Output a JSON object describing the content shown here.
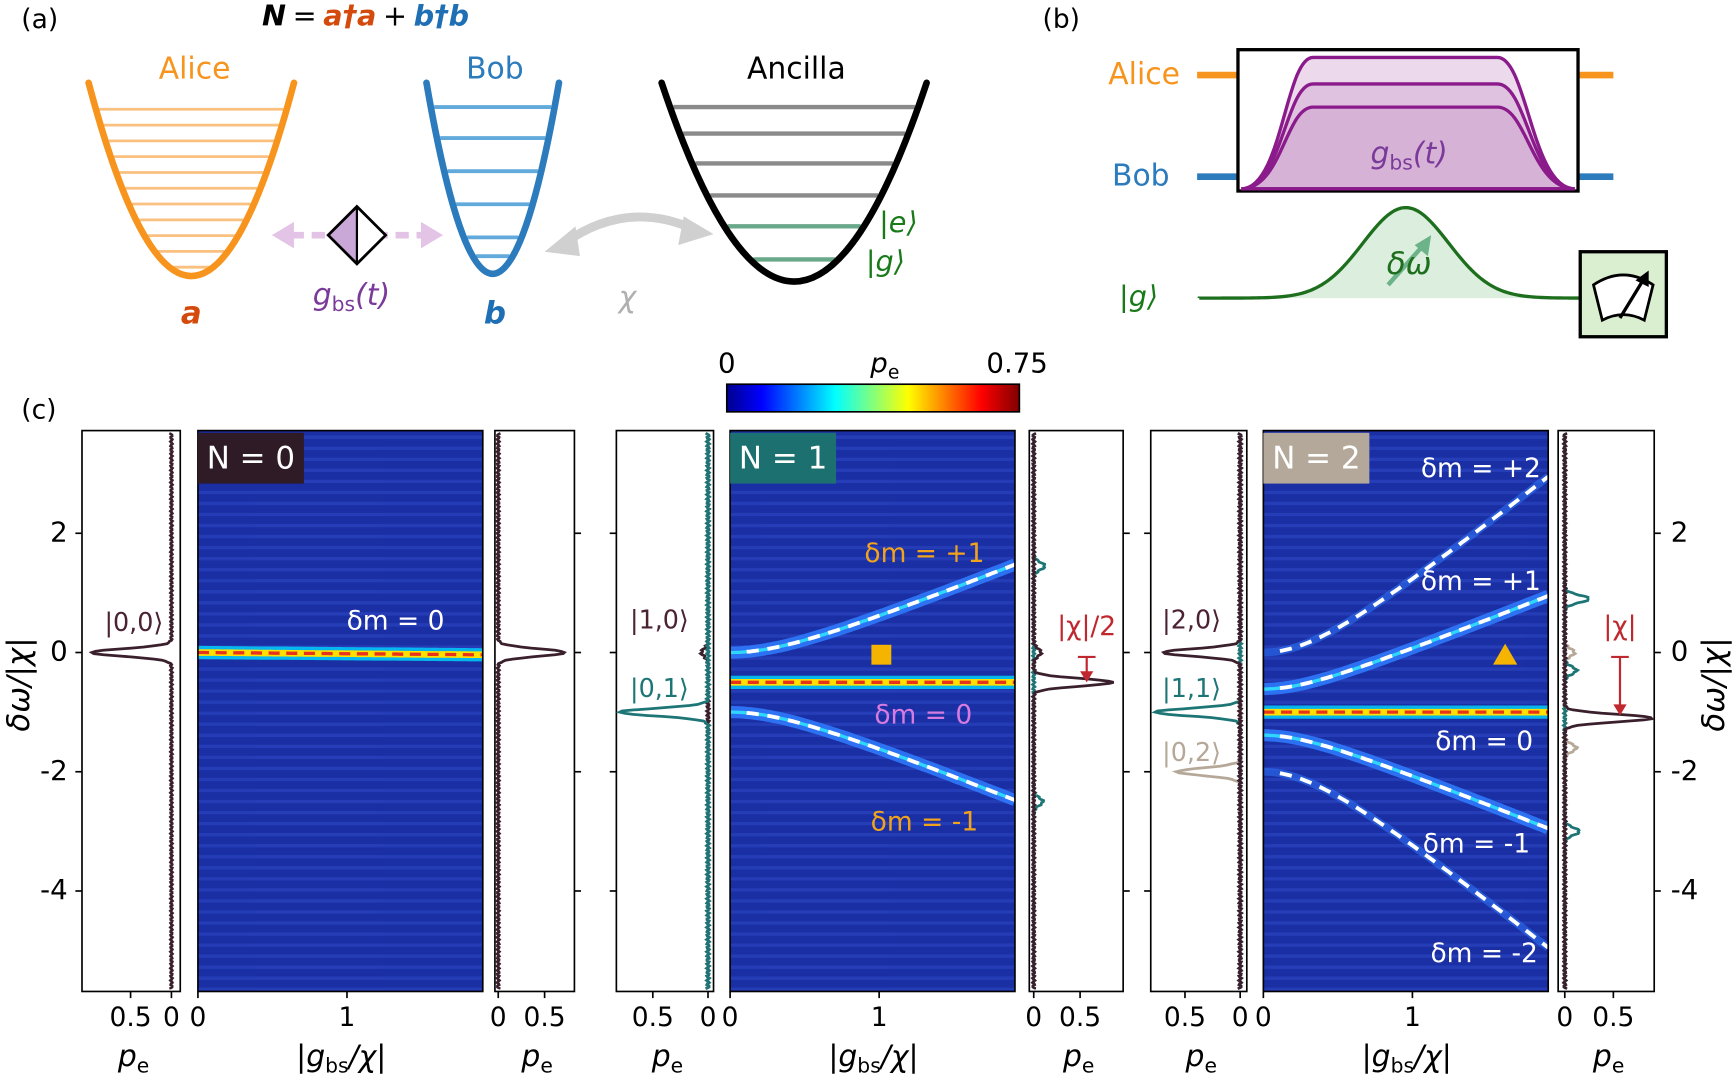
{
  "panel_labels": [
    "(a)",
    "(b)",
    "(c)"
  ],
  "equation": [
    "N",
    "=",
    "a†a",
    "+",
    "b†b"
  ],
  "panel_a": {
    "alice": "Alice",
    "bob": "Bob",
    "ancilla": "Ancilla",
    "mode_a": "a",
    "mode_b": "b",
    "coupling": [
      "g",
      "bs",
      "(t)"
    ],
    "chi": "χ",
    "ket_e": "|e⟩",
    "ket_g": "|g⟩"
  },
  "panel_b": {
    "alice": "Alice",
    "bob": "Bob",
    "coupling": [
      "g",
      "bs",
      "(t)"
    ],
    "ket_g": "|g⟩",
    "detuning": "δω"
  },
  "colorbar": {
    "min": 0,
    "label": [
      "p",
      "e"
    ],
    "max": 0.75
  },
  "panel_c": {
    "y_label": "δω/|χ|",
    "y_ticks": [
      2,
      0,
      -2,
      -4
    ],
    "groups": [
      {
        "title": "N = 0",
        "title_color": "#2e1b25",
        "x_label": [
          "|g",
          "bs",
          "/χ|"
        ],
        "x_ticks": [
          0,
          1
        ],
        "side_label": [
          "p",
          "e"
        ],
        "left_ticks": [
          0.5,
          0
        ],
        "right_ticks": [
          0,
          0.5
        ],
        "states": [
          {
            "label": "|0,0⟩",
            "color": "#4a2233"
          }
        ],
        "annotations": [
          {
            "text": "δm = 0",
            "color": "#ffffff"
          }
        ]
      },
      {
        "title": "N = 1",
        "title_color": "#1d7070",
        "x_label": [
          "|g",
          "bs",
          "/χ|"
        ],
        "x_ticks": [
          0,
          1
        ],
        "side_label": [
          "p",
          "e"
        ],
        "left_ticks": [
          0.5,
          0
        ],
        "right_ticks": [
          0,
          0.5
        ],
        "states": [
          {
            "label": "|1,0⟩",
            "color": "#4a2233"
          },
          {
            "label": "|0,1⟩",
            "color": "#1d7575"
          }
        ],
        "annotations": [
          {
            "text": "δm = +1",
            "color": "#f2a31c"
          },
          {
            "text": "δm = 0",
            "color": "#d77be0"
          },
          {
            "text": "δm = -1",
            "color": "#f2a31c"
          }
        ],
        "shift_label": {
          "text": "|χ|/2",
          "color": "#c0282f"
        }
      },
      {
        "title": "N = 2",
        "title_color": "#b3a899",
        "x_label": [
          "|g",
          "bs",
          "/χ|"
        ],
        "x_ticks": [
          0,
          1
        ],
        "side_label": [
          "p",
          "e"
        ],
        "left_ticks": [
          0.5,
          0
        ],
        "right_ticks": [
          0,
          0.5
        ],
        "states": [
          {
            "label": "|2,0⟩",
            "color": "#4a2233"
          },
          {
            "label": "|1,1⟩",
            "color": "#1d7575"
          },
          {
            "label": "|0,2⟩",
            "color": "#b5a898"
          }
        ],
        "annotations": [
          {
            "text": "δm = +2",
            "color": "#ffffff"
          },
          {
            "text": "δm = +1",
            "color": "#ffffff"
          },
          {
            "text": "δm = 0",
            "color": "#ffffff"
          },
          {
            "text": "δm = -1",
            "color": "#ffffff"
          },
          {
            "text": "δm = -2",
            "color": "#ffffff"
          }
        ],
        "shift_label": {
          "text": "|χ|",
          "color": "#c0282f"
        }
      }
    ]
  }
}
